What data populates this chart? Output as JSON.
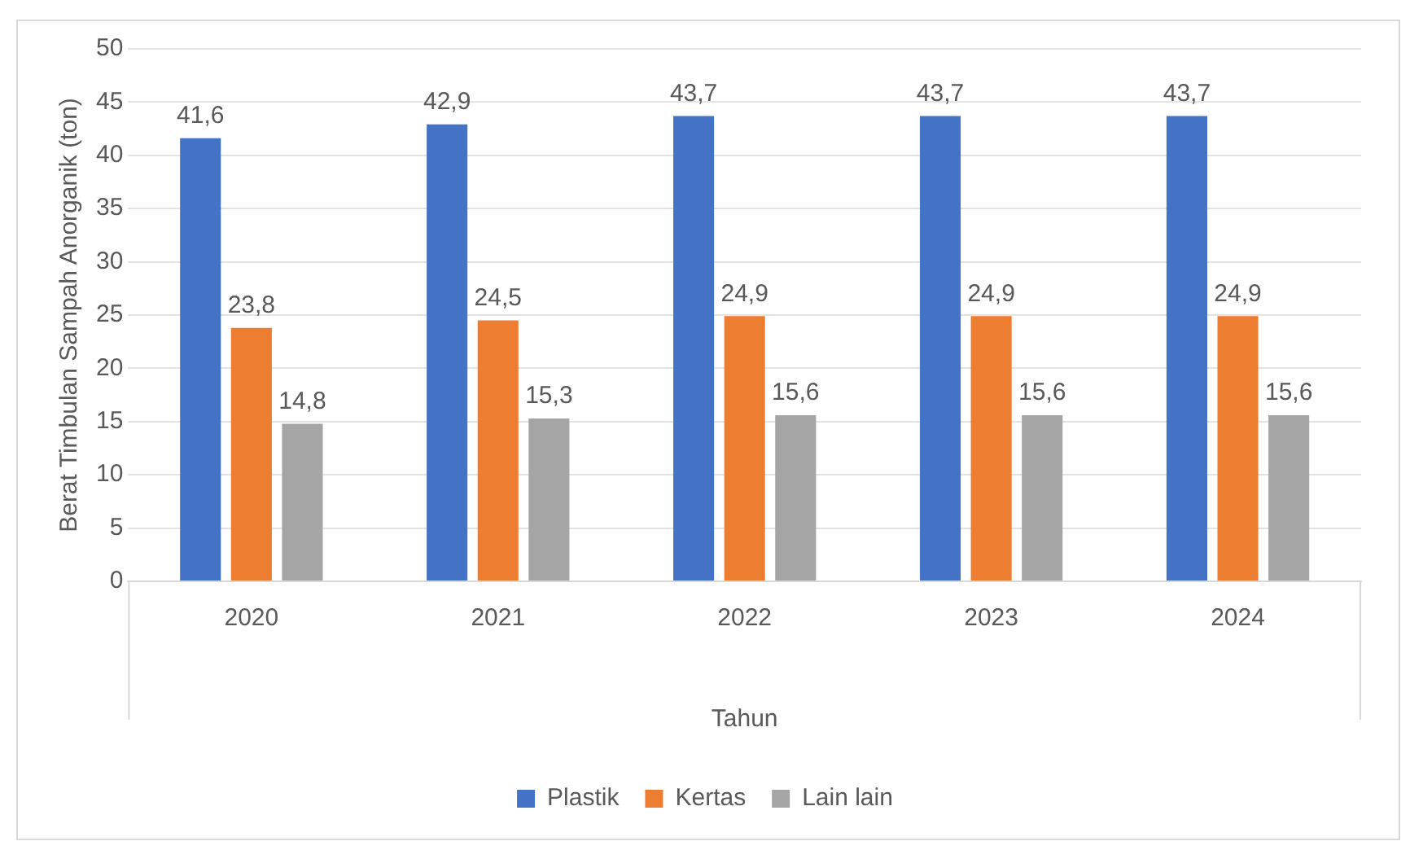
{
  "chart_data": {
    "type": "bar",
    "xlabel": "Tahun",
    "ylabel": "Berat Timbulan Sampah Anorganik (ton)",
    "categories": [
      "2020",
      "2021",
      "2022",
      "2023",
      "2024"
    ],
    "series": [
      {
        "name": "Plastik",
        "color": "#4472c4",
        "values": [
          41.6,
          42.9,
          43.7,
          43.7,
          43.7
        ],
        "value_labels": [
          "41,6",
          "42,9",
          "43,7",
          "43,7",
          "43,7"
        ]
      },
      {
        "name": "Kertas",
        "color": "#ed7d31",
        "values": [
          23.8,
          24.5,
          24.9,
          24.9,
          24.9
        ],
        "value_labels": [
          "23,8",
          "24,5",
          "24,9",
          "24,9",
          "24,9"
        ]
      },
      {
        "name": "Lain lain",
        "color": "#a5a5a5",
        "values": [
          14.8,
          15.3,
          15.6,
          15.6,
          15.6
        ],
        "value_labels": [
          "14,8",
          "15,3",
          "15,6",
          "15,6",
          "15,6"
        ]
      }
    ],
    "ylim": [
      0,
      50
    ],
    "yticks": [
      0,
      5,
      10,
      15,
      20,
      25,
      30,
      35,
      40,
      45,
      50
    ],
    "grid": "y",
    "legend": "bottom"
  }
}
